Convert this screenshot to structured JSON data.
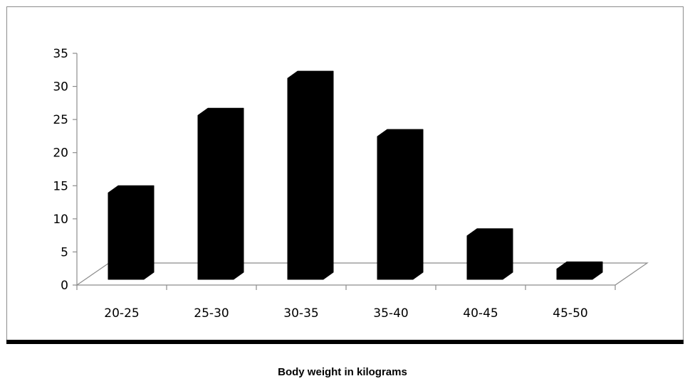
{
  "chart_data": {
    "type": "bar",
    "style": "3d-column",
    "categories": [
      "20-25",
      "25-30",
      "30-35",
      "35-40",
      "40-45",
      "45-50"
    ],
    "values": [
      13.5,
      25.2,
      30.8,
      22,
      7,
      2
    ],
    "xlabel": "Body weight in kilograms",
    "ylabel": "",
    "ylim": [
      0,
      35
    ],
    "yticks": [
      0,
      5,
      10,
      15,
      20,
      25,
      30,
      35
    ],
    "bar_color": "#000000",
    "grid": false,
    "legend": "none"
  }
}
